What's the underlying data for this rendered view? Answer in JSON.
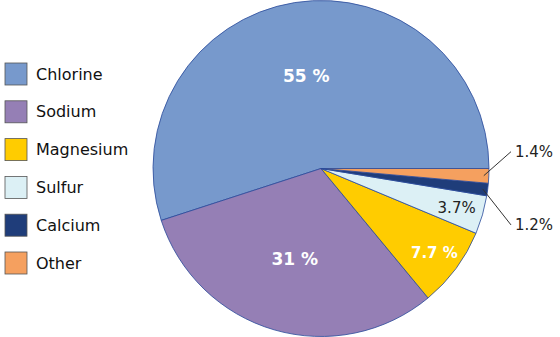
{
  "chart_data": {
    "type": "pie",
    "categories": [
      "Chlorine",
      "Sodium",
      "Magnesium",
      "Sulfur",
      "Calcium",
      "Other"
    ],
    "values": [
      55,
      31,
      7.7,
      3.7,
      1.2,
      1.4
    ],
    "value_labels": [
      "55 %",
      "31 %",
      "7.7 %",
      "3.7%",
      "1.2%",
      "1.4%"
    ],
    "colors": [
      "#7799cc",
      "#957fb5",
      "#ffcc00",
      "#dcf0f5",
      "#1f3d7a",
      "#f5a05f"
    ],
    "data_labels": true,
    "legend": "left"
  }
}
